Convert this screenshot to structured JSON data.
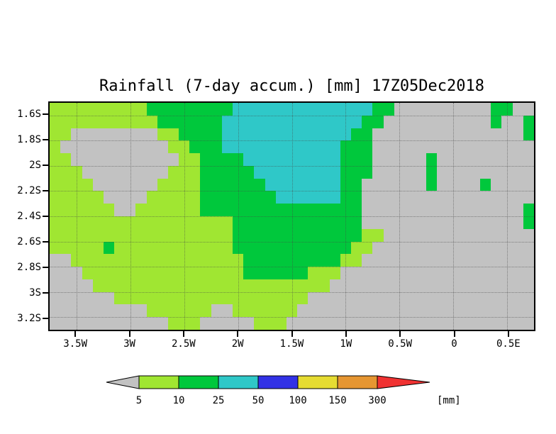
{
  "chart_data": {
    "type": "heatmap",
    "title": "Rainfall (7-day accum.) [mm] 17Z05Dec2018",
    "x_ticks": [
      "3.5W",
      "3W",
      "2.5W",
      "2W",
      "1.5W",
      "1W",
      "0.5W",
      "0",
      "0.5E"
    ],
    "y_ticks": [
      "1.6S",
      "1.8S",
      "2S",
      "2.2S",
      "2.4S",
      "2.6S",
      "2.8S",
      "3S",
      "3.2S"
    ],
    "levels_mm": [
      5,
      10,
      25,
      50,
      100,
      150,
      300
    ],
    "palette": {
      "G": "#c2c2c2",
      "Y": "#a0e632",
      "g": "#00c83c",
      "C": "#2fc8c8",
      "B": "#3232e6",
      "y": "#e6dc32",
      "O": "#e69632",
      "R": "#f03232"
    },
    "value_ranges_mm": {
      "G": "<5",
      "Y": "5-10",
      "g": "10-25",
      "C": "25-50",
      "B": "50-100",
      "y": "100-150",
      "O": "150-300",
      "R": ">300"
    },
    "grid_rows": 18,
    "grid_cols": 45,
    "grid": [
      "YYYYYYYYYggggggggCCCCCCCCCCCCCggGGGGGGGGGggGG",
      "YYYYYYYYYYggggggCCCCCCCCCCCCCggGGGGGGGGGGgGGg",
      "YYGGGGGGGGYYggggCCCCCCCCCCCCggGGGGGGGGGGGGGGg",
      "YGGGGGGGGGGYYgggCCCCCCCCCCCgggGGGGGGGGGGGGGGG",
      "YYGGGGGGGGGGYYggggCCCCCCCCCgggGGGGGgGGGGGGGGG",
      "YYYGGGGGGGGYYYgggggCCCCCCCCgggGGGGGgGGGGGGGGG",
      "YYYYGGGGGGYYYYggggggCCCCCCCggGGGGGGgGGGGgGGGG",
      "YYYYYGGGGYYYYYgggggggCCCCCCggGGGGGGGGGGGGGGGG",
      "YYYYYYGGYYYYYYgggggggggggggggGGGGGGGGGGGGGGGg",
      "YYYYYYYYYYYYYYYYYggggggggggggGGGGGGGGGGGGGGGg",
      "YYYYYYYYYYYYYYYYYggggggggggggYYGGGGGGGGGGGGGG",
      "YYYYYgYYYYYYYYYYYgggggggggggYYGGGGGGGGGGGGGGG",
      "GGYYYYYYYYYYYYYYYYgggggggggYYGGGGGGGGGGGGGGGG",
      "GGGYYYYYYYYYYYYYYYggggggYYYGGGGGGGGGGGGGGGGGG",
      "GGGGYYYYYYYYYYYYYYYYYYYYYYGGGGGGGGGGGGGGGGGGG",
      "GGGGGGYYYYYYYYYYYYYYYYYYGGGGGGGGGGGGGGGGGGGGG",
      "GGGGGGGGGYYYYYYGGYYYYYYGGGGGGGGGGGGGGGGGGGGGG",
      "GGGGGGGGGGGYYYGGGGGYYYGGGGGGGGGGGGGGGGGGGGGGG"
    ],
    "legend": {
      "labels": [
        "5",
        "10",
        "25",
        "50",
        "100",
        "150",
        "300"
      ],
      "unit": "[mm]",
      "colors": [
        "#c2c2c2",
        "#a0e632",
        "#00c83c",
        "#2fc8c8",
        "#3232e6",
        "#e6dc32",
        "#e69632",
        "#f03232"
      ]
    }
  }
}
